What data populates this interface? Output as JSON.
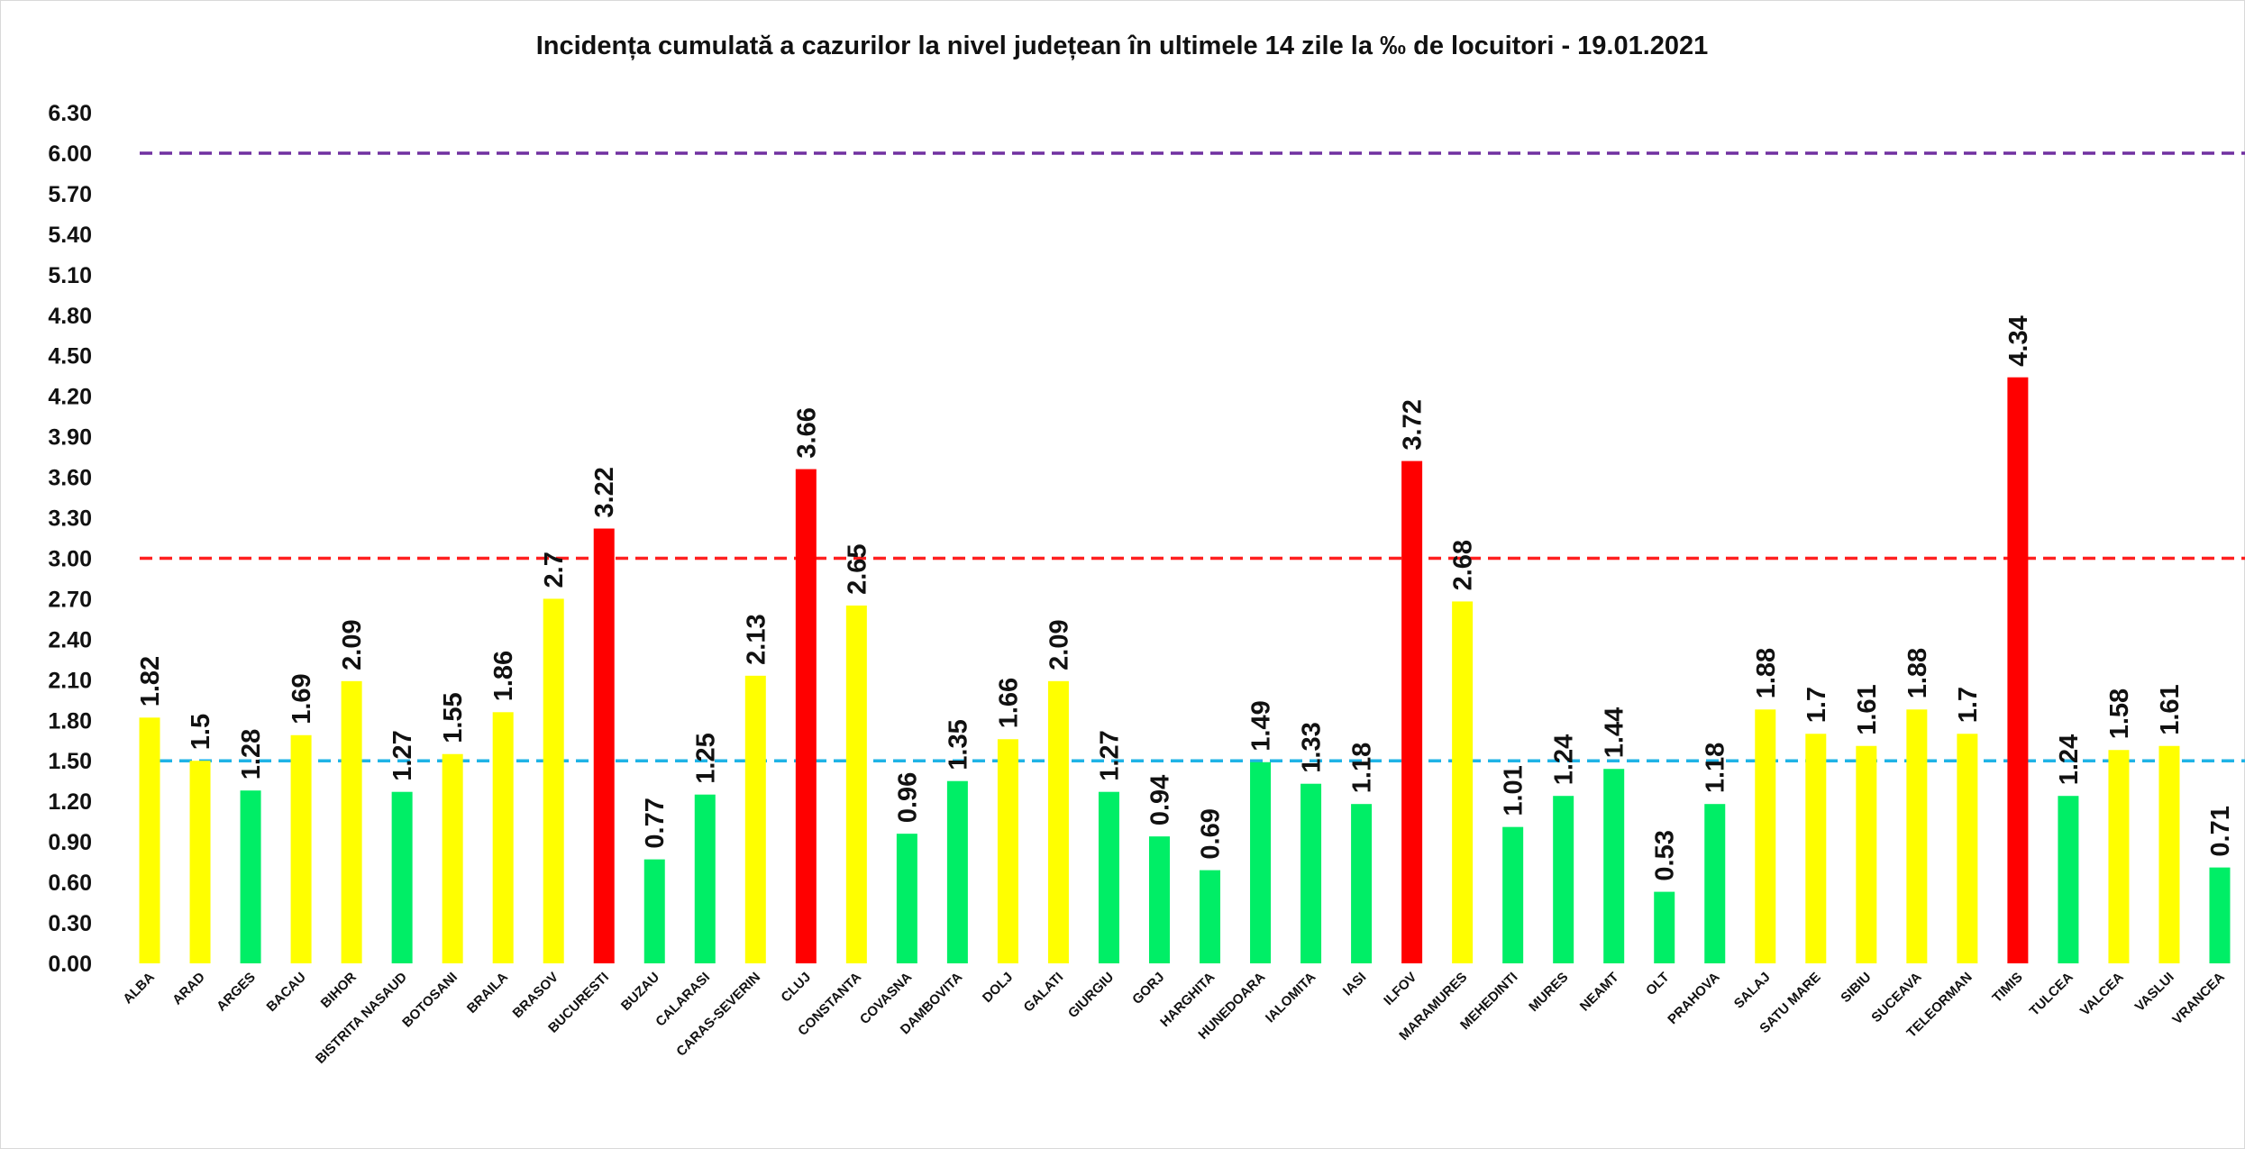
{
  "chart_data": {
    "type": "bar",
    "title": "Incidența cumulată a cazurilor la nivel județean în ultimele 14 zile la ‰ de locuitori - 19.01.2021",
    "xlabel": "",
    "ylabel": "",
    "ylim": [
      0,
      6.3
    ],
    "yticks": [
      "0.00",
      "0.30",
      "0.60",
      "0.90",
      "1.20",
      "1.50",
      "1.80",
      "2.10",
      "2.40",
      "2.70",
      "3.00",
      "3.30",
      "3.60",
      "3.90",
      "4.20",
      "4.50",
      "4.80",
      "5.10",
      "5.40",
      "5.70",
      "6.00",
      "6.30"
    ],
    "grid": false,
    "legend": "none",
    "categories": [
      "ALBA",
      "ARAD",
      "ARGES",
      "BACAU",
      "BIHOR",
      "BISTRITA NASAUD",
      "BOTOSANI",
      "BRAILA",
      "BRASOV",
      "BUCURESTI",
      "BUZAU",
      "CALARASI",
      "CARAS-SEVERIN",
      "CLUJ",
      "CONSTANTA",
      "COVASNA",
      "DAMBOVITA",
      "DOLJ",
      "GALATI",
      "GIURGIU",
      "GORJ",
      "HARGHITA",
      "HUNEDOARA",
      "IALOMITA",
      "IASI",
      "ILFOV",
      "MARAMURES",
      "MEHEDINTI",
      "MURES",
      "NEAMT",
      "OLT",
      "PRAHOVA",
      "SALAJ",
      "SATU MARE",
      "SIBIU",
      "SUCEAVA",
      "TELEORMAN",
      "TIMIS",
      "TULCEA",
      "VALCEA",
      "VASLUI",
      "VRANCEA"
    ],
    "values": [
      1.82,
      1.5,
      1.28,
      1.69,
      2.09,
      1.27,
      1.55,
      1.86,
      2.7,
      3.22,
      0.77,
      1.25,
      2.13,
      3.66,
      2.65,
      0.96,
      1.35,
      1.66,
      2.09,
      1.27,
      0.94,
      0.69,
      1.49,
      1.33,
      1.18,
      3.72,
      2.68,
      1.01,
      1.24,
      1.44,
      0.53,
      1.18,
      1.88,
      1.7,
      1.61,
      1.88,
      1.7,
      4.34,
      1.24,
      1.58,
      1.61,
      0.71
    ],
    "labels": [
      "1.82",
      "1.5",
      "1.28",
      "1.69",
      "2.09",
      "1.27",
      "1.55",
      "1.86",
      "2.7",
      "3.22",
      "0.77",
      "1.25",
      "2.13",
      "3.66",
      "2.65",
      "0.96",
      "1.35",
      "1.66",
      "2.09",
      "1.27",
      "0.94",
      "0.69",
      "1.49",
      "1.33",
      "1.18",
      "3.72",
      "2.68",
      "1.01",
      "1.24",
      "1.44",
      "0.53",
      "1.18",
      "1.88",
      "1.7",
      "1.61",
      "1.88",
      "1.7",
      "4.34",
      "1.24",
      "1.58",
      "1.61",
      "0.71"
    ],
    "bar_colors": [
      "#ffff00",
      "#ffff00",
      "#00ee66",
      "#ffff00",
      "#ffff00",
      "#00ee66",
      "#ffff00",
      "#ffff00",
      "#ffff00",
      "#ff0000",
      "#00ee66",
      "#00ee66",
      "#ffff00",
      "#ff0000",
      "#ffff00",
      "#00ee66",
      "#00ee66",
      "#ffff00",
      "#ffff00",
      "#00ee66",
      "#00ee66",
      "#00ee66",
      "#00ee66",
      "#00ee66",
      "#00ee66",
      "#ff0000",
      "#ffff00",
      "#00ee66",
      "#00ee66",
      "#00ee66",
      "#00ee66",
      "#00ee66",
      "#ffff00",
      "#ffff00",
      "#ffff00",
      "#ffff00",
      "#ffff00",
      "#ff0000",
      "#00ee66",
      "#ffff00",
      "#ffff00",
      "#00ee66"
    ],
    "reference_lines": [
      {
        "value": 1.5,
        "color": "#1fb3e6",
        "style": "dashed"
      },
      {
        "value": 3.0,
        "color": "#ff2020",
        "style": "dashed"
      },
      {
        "value": 6.0,
        "color": "#7030a0",
        "style": "dashed"
      }
    ]
  }
}
